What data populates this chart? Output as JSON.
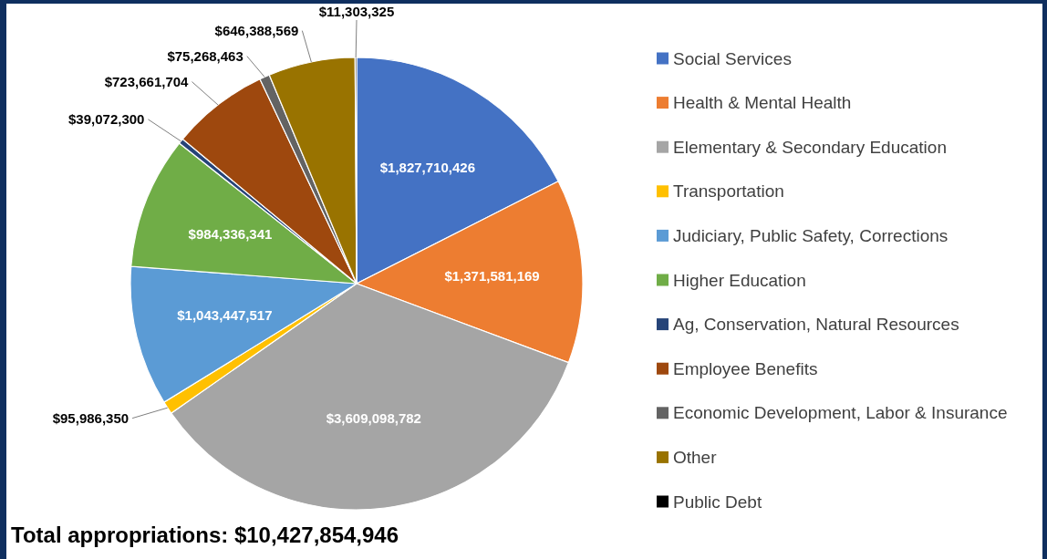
{
  "chart_data": {
    "type": "pie",
    "categories": [
      "Social Services",
      "Health & Mental Health",
      "Elementary & Secondary Education",
      "Transportation",
      "Judiciary, Public Safety, Corrections",
      "Higher Education",
      "Ag, Conservation, Natural Resources",
      "Employee Benefits",
      "Economic Development, Labor & Insurance",
      "Other",
      "Public Debt"
    ],
    "values": [
      1827710426,
      1371581169,
      3609098782,
      95986350,
      1043447517,
      984336341,
      39072300,
      723661704,
      75268463,
      646388569,
      11303325
    ],
    "value_labels": [
      "$1,827,710,426",
      "$1,371,581,169",
      "$3,609,098,782",
      "$95,986,350",
      "$1,043,447,517",
      "$984,336,341",
      "$39,072,300",
      "$723,661,704",
      "$75,268,463",
      "$646,388,569",
      "$11,303,325"
    ],
    "colors": [
      "#4472c4",
      "#ed7d31",
      "#a5a5a5",
      "#ffc000",
      "#5b9bd5",
      "#70ad47",
      "#264478",
      "#9e480e",
      "#636363",
      "#997300",
      "#000000"
    ],
    "legend": "right",
    "annotations": [
      "Total appropriations: $10,427,854,946"
    ]
  }
}
